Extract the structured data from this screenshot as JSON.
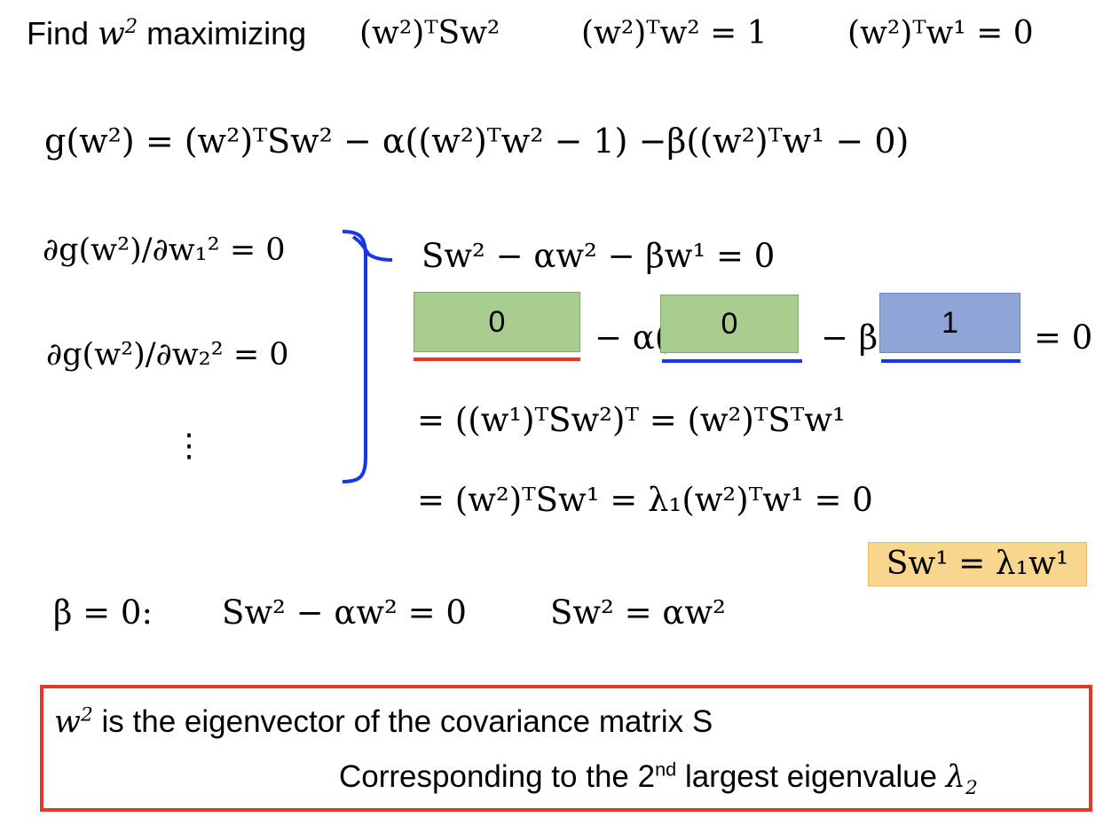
{
  "colors": {
    "green_box": "#a9cd8f",
    "blue_box": "#8fa5d8",
    "red": "#e5382b",
    "blue": "#1736e6",
    "orange_box": "#f8d68e"
  },
  "line1": {
    "find": "Find",
    "w": "w",
    "sq": "2",
    "maximizing": "maximizing",
    "expr1": "(w²)ᵀSw²",
    "expr2": "(w²)ᵀw² = 1",
    "expr3": "(w²)ᵀw¹ = 0"
  },
  "line2": "g(w²) = (w²)ᵀSw² − α((w²)ᵀw² − 1)  −β((w²)ᵀw¹ − 0)",
  "partial1": "∂g(w²)/∂w₁² = 0",
  "partial2": "∂g(w²)/∂w₂² = 0",
  "vdots": "⋮",
  "rhs1": "Sw² − αw² − βw¹ = 0",
  "rhs2": {
    "minus_alpha": "− α(",
    "minus_beta": "− β",
    "eq_zero": "= 0",
    "box_green_1": "0",
    "box_green_2": "0",
    "box_blue": "1"
  },
  "rhs3": "= ((w¹)ᵀSw²)ᵀ = (w²)ᵀSᵀw¹",
  "rhs4": "= (w²)ᵀSw¹ = λ₁(w²)ᵀw¹ = 0",
  "eigen_note": "Sw¹ = λ₁w¹",
  "beta_line": {
    "beta": "β = 0:",
    "eq1": "Sw² − αw² = 0",
    "eq2": "Sw² = αw²"
  },
  "conclusion": {
    "w": "w",
    "sq": "2",
    "line1": "is the eigenvector of the covariance matrix S",
    "line2_pre": "Corresponding to the 2",
    "nd": "nd",
    "line2_post": "largest eigenvalue",
    "lambda": "λ",
    "sub": "2"
  }
}
